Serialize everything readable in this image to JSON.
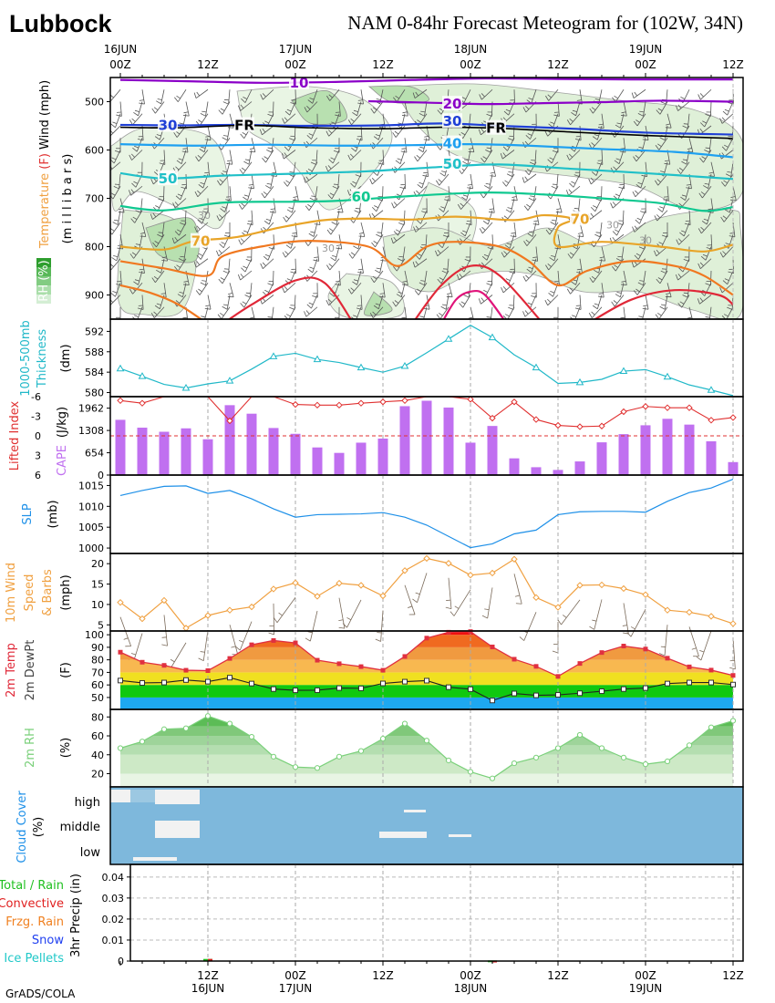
{
  "header": {
    "station": "Lubbock",
    "title": "NAM 0-84hr Forecast Meteogram for (102W, 34N)",
    "credit": "GrADS/COLA"
  },
  "colors": {
    "purple": "#8b00c8",
    "blue": "#1f3fd6",
    "sky": "#1ea0f0",
    "cyan": "#20c0c8",
    "teal": "#10c890",
    "gold": "#e8a428",
    "orange": "#f07820",
    "red": "#e02838",
    "magenta": "#e0147a",
    "thickness": "#20b8c8",
    "lifted": "#e03030",
    "cape": "#c070f0",
    "slp": "#1e90e8",
    "wind": "#f0a040",
    "barb": "#7a6a5a",
    "rh": "#7ad07a",
    "cloud": "#7eb8dc",
    "rain_total": "#20c020",
    "rain_conv": "#e02020"
  },
  "chart_data": [
    {
      "id": "upper_air",
      "type": "line",
      "ylabel_parts": [
        "Temperature",
        "(F)",
        "Wind (mph)"
      ],
      "ylabel2": "(m i l l i b a r s)",
      "rh_label": "RH (%)",
      "yticks": [
        500,
        600,
        700,
        800,
        900
      ],
      "ylim": [
        450,
        950
      ],
      "contour_labels": [
        {
          "text": "10",
          "hour": 24.5,
          "p": 461,
          "color": "purple"
        },
        {
          "text": "20",
          "hour": 45.5,
          "p": 505,
          "color": "purple"
        },
        {
          "text": "30",
          "hour": 6.5,
          "p": 549,
          "color": "blue"
        },
        {
          "text": "30",
          "hour": 45.5,
          "p": 541,
          "color": "blue"
        },
        {
          "text": "40",
          "hour": 45.5,
          "p": 587,
          "color": "sky"
        },
        {
          "text": "50",
          "hour": 6.5,
          "p": 659,
          "color": "cyan"
        },
        {
          "text": "50",
          "hour": 45.5,
          "p": 629,
          "color": "cyan"
        },
        {
          "text": "60",
          "hour": 33,
          "p": 697,
          "color": "teal"
        },
        {
          "text": "70",
          "hour": 11,
          "p": 789,
          "color": "gold"
        },
        {
          "text": "70",
          "hour": 63,
          "p": 743,
          "color": "gold"
        },
        {
          "text": "FR",
          "hour": 17,
          "p": 549,
          "color": "black"
        },
        {
          "text": "FR",
          "hour": 51.5,
          "p": 555,
          "color": "black"
        }
      ],
      "rh_labels": [
        {
          "text": "30",
          "hour": 11.5,
          "p": 735
        },
        {
          "text": "30",
          "hour": 28.5,
          "p": 803
        },
        {
          "text": "30",
          "hour": 67.5,
          "p": 755
        },
        {
          "text": "30",
          "hour": 72,
          "p": 787
        }
      ]
    },
    {
      "id": "thickness",
      "type": "line",
      "ylabel": "1000-500mb Thickness",
      "unit": "(dm)",
      "yticks": [
        580,
        584,
        588,
        592
      ],
      "ylim": [
        579.2,
        594.4
      ],
      "x": [
        0,
        3,
        6,
        9,
        12,
        15,
        18,
        21,
        24,
        27,
        30,
        33,
        36,
        39,
        42,
        45,
        48,
        51,
        54,
        57,
        60,
        63,
        66,
        69,
        72,
        75,
        78,
        81,
        84
      ],
      "values": [
        584.7,
        583.2,
        581.6,
        580.9,
        581.7,
        582.3,
        584.6,
        587.1,
        587.7,
        586.5,
        585.9,
        584.9,
        584.0,
        585.2,
        587.8,
        590.5,
        593.2,
        590.8,
        587.4,
        584.9,
        581.8,
        582.0,
        582.6,
        584.2,
        584.5,
        583.1,
        581.5,
        580.5,
        579.4
      ]
    },
    {
      "id": "lifted_cape",
      "type": "bar",
      "ylabel_left": "Lifted Index",
      "ylabel_right": "CAPE",
      "unit": "(J/kg)",
      "li_ticks": [
        "-6",
        "-3",
        "0",
        "3",
        "6"
      ],
      "cape_ticks": [
        "1962",
        "1308",
        "654",
        "0"
      ],
      "li_lim": [
        -6,
        6
      ],
      "cape_lim": [
        0,
        2300
      ],
      "x": [
        0,
        3,
        6,
        9,
        12,
        15,
        18,
        21,
        24,
        27,
        30,
        33,
        36,
        39,
        42,
        45,
        48,
        51,
        54,
        57,
        60,
        63,
        66,
        69,
        72,
        75,
        78,
        81,
        84
      ],
      "li": [
        -5.4,
        -5.0,
        -6.0,
        -6.5,
        -6.5,
        -2.3,
        -6.2,
        -6.5,
        -4.8,
        -4.7,
        -4.7,
        -5.0,
        -5.2,
        -5.4,
        -6.4,
        -6.5,
        -5.6,
        -2.7,
        -5.2,
        -2.5,
        -1.6,
        -1.4,
        -1.5,
        -3.7,
        -4.5,
        -4.3,
        -4.3,
        -2.4,
        -2.8
      ],
      "cape": [
        1620,
        1390,
        1270,
        1370,
        1050,
        2050,
        1800,
        1380,
        1210,
        810,
        650,
        950,
        1070,
        2020,
        2180,
        1980,
        950,
        1440,
        490,
        230,
        150,
        400,
        960,
        1200,
        1460,
        1650,
        1480,
        990,
        380
      ]
    },
    {
      "id": "slp",
      "type": "line",
      "ylabel": "SLP",
      "unit": "(mb)",
      "yticks": [
        1000,
        1005,
        1010,
        1015
      ],
      "ylim": [
        998.7,
        1017.5
      ],
      "x": [
        0,
        3,
        6,
        9,
        12,
        15,
        18,
        21,
        24,
        27,
        30,
        33,
        36,
        39,
        42,
        45,
        48,
        51,
        54,
        57,
        60,
        63,
        66,
        69,
        72,
        75,
        78,
        81,
        84
      ],
      "values": [
        1012.6,
        1013.8,
        1014.8,
        1014.9,
        1013.1,
        1013.8,
        1011.8,
        1009.4,
        1007.4,
        1008.0,
        1008.1,
        1008.2,
        1008.5,
        1007.4,
        1005.5,
        1002.8,
        1000.1,
        1001.0,
        1003.4,
        1004.3,
        1008.0,
        1008.7,
        1008.8,
        1008.8,
        1008.6,
        1011.2,
        1013.3,
        1014.4,
        1016.5
      ]
    },
    {
      "id": "wind10m",
      "type": "line",
      "ylabel": "10m Wind Speed & Barbs",
      "unit": "(mph)",
      "yticks": [
        5,
        10,
        15,
        20
      ],
      "ylim": [
        3.5,
        22.5
      ],
      "x": [
        0,
        3,
        6,
        9,
        12,
        15,
        18,
        21,
        24,
        27,
        30,
        33,
        36,
        39,
        42,
        45,
        48,
        51,
        54,
        57,
        60,
        63,
        66,
        69,
        72,
        75,
        78,
        81,
        84
      ],
      "values": [
        10.5,
        6.5,
        11.0,
        4.2,
        7.3,
        8.6,
        9.4,
        13.8,
        15.3,
        12.0,
        15.2,
        14.7,
        12.1,
        18.3,
        21.3,
        20.1,
        17.2,
        17.7,
        21.1,
        11.7,
        9.3,
        14.7,
        14.8,
        13.9,
        12.4,
        8.6,
        8.1,
        7.1,
        5.3
      ]
    },
    {
      "id": "temp_dew",
      "type": "area",
      "ylabel_left": "2m Temp",
      "ylabel_right": "2m DewPt",
      "unit": "(F)",
      "yticks": [
        50,
        60,
        70,
        80,
        90,
        100
      ],
      "ylim": [
        40.5,
        103
      ],
      "x": [
        0,
        3,
        6,
        9,
        12,
        15,
        18,
        21,
        24,
        27,
        30,
        33,
        36,
        39,
        42,
        45,
        48,
        51,
        54,
        57,
        60,
        63,
        66,
        69,
        72,
        75,
        78,
        81,
        84
      ],
      "temperature": [
        86.1,
        78.1,
        75.6,
        71.7,
        71.4,
        81.1,
        92.0,
        95.4,
        93.5,
        79.7,
        76.9,
        74.6,
        71.7,
        82.7,
        97.3,
        102.0,
        102.5,
        90.3,
        80.5,
        74.8,
        66.8,
        77.1,
        85.8,
        91.0,
        88.6,
        81.3,
        74.4,
        71.8,
        67.6
      ],
      "dewpoint": [
        63.5,
        61.6,
        61.9,
        63.9,
        62.6,
        65.8,
        61.1,
        56.7,
        55.7,
        55.8,
        57.5,
        57.3,
        61.2,
        62.6,
        63.4,
        58.2,
        56.6,
        47.6,
        53.2,
        51.7,
        52.1,
        53.4,
        55.0,
        56.7,
        57.5,
        61.1,
        61.9,
        61.9,
        60.3
      ]
    },
    {
      "id": "rh2m",
      "type": "area",
      "ylabel": "2m RH",
      "unit": "(%)",
      "yticks": [
        20,
        40,
        60,
        80
      ],
      "ylim": [
        6,
        88
      ],
      "x": [
        0,
        3,
        6,
        9,
        12,
        15,
        18,
        21,
        24,
        27,
        30,
        33,
        36,
        39,
        42,
        45,
        48,
        51,
        54,
        57,
        60,
        63,
        66,
        69,
        72,
        75,
        78,
        81,
        84
      ],
      "values": [
        47,
        54,
        67,
        68,
        81,
        73,
        59,
        38,
        27,
        26,
        38,
        44,
        57,
        73,
        55,
        34,
        22,
        15,
        31,
        37,
        47,
        61,
        47,
        37,
        30,
        33,
        50,
        69,
        76
      ]
    },
    {
      "id": "cloud_cover",
      "type": "heatmap",
      "ylabel": "Cloud Cover",
      "unit": "(%)",
      "levels": [
        "high",
        "middle",
        "low"
      ]
    },
    {
      "id": "precip",
      "type": "bar",
      "ylabel": "3hr Precip (in)",
      "legend": [
        "Total / Rain",
        "Convective",
        "Frzg. Rain",
        "Snow",
        "Ice Pellets"
      ],
      "legend_colors": [
        "#20c020",
        "#e02020",
        "#f08020",
        "#2040f0",
        "#20c8c8"
      ],
      "yticks": [
        "0",
        "0.01",
        "0.02",
        "0.03",
        "0.04"
      ],
      "ylim": [
        0,
        0.046
      ],
      "bars": [
        {
          "hour": 12,
          "total": 0.001,
          "convective": 0.001
        },
        {
          "hour": 51,
          "total": 0.0003,
          "convective": 0.0002
        }
      ]
    }
  ],
  "x_axis": {
    "top": [
      {
        "hour": 0,
        "line1": "16JUN",
        "line2": "00Z"
      },
      {
        "hour": 12,
        "line1": "",
        "line2": "12Z"
      },
      {
        "hour": 24,
        "line1": "17JUN",
        "line2": "00Z"
      },
      {
        "hour": 36,
        "line1": "",
        "line2": "12Z"
      },
      {
        "hour": 48,
        "line1": "18JUN",
        "line2": "00Z"
      },
      {
        "hour": 60,
        "line1": "",
        "line2": "12Z"
      },
      {
        "hour": 72,
        "line1": "19JUN",
        "line2": "00Z"
      },
      {
        "hour": 84,
        "line1": "",
        "line2": "12Z"
      }
    ],
    "bottom": [
      {
        "hour": 12,
        "line1": "12Z",
        "line2": "16JUN"
      },
      {
        "hour": 24,
        "line1": "00Z",
        "line2": "17JUN"
      },
      {
        "hour": 36,
        "line1": "12Z",
        "line2": ""
      },
      {
        "hour": 48,
        "line1": "00Z",
        "line2": "18JUN"
      },
      {
        "hour": 60,
        "line1": "12Z",
        "line2": ""
      },
      {
        "hour": 72,
        "line1": "00Z",
        "line2": "19JUN"
      },
      {
        "hour": 84,
        "line1": "12Z",
        "line2": ""
      }
    ]
  }
}
